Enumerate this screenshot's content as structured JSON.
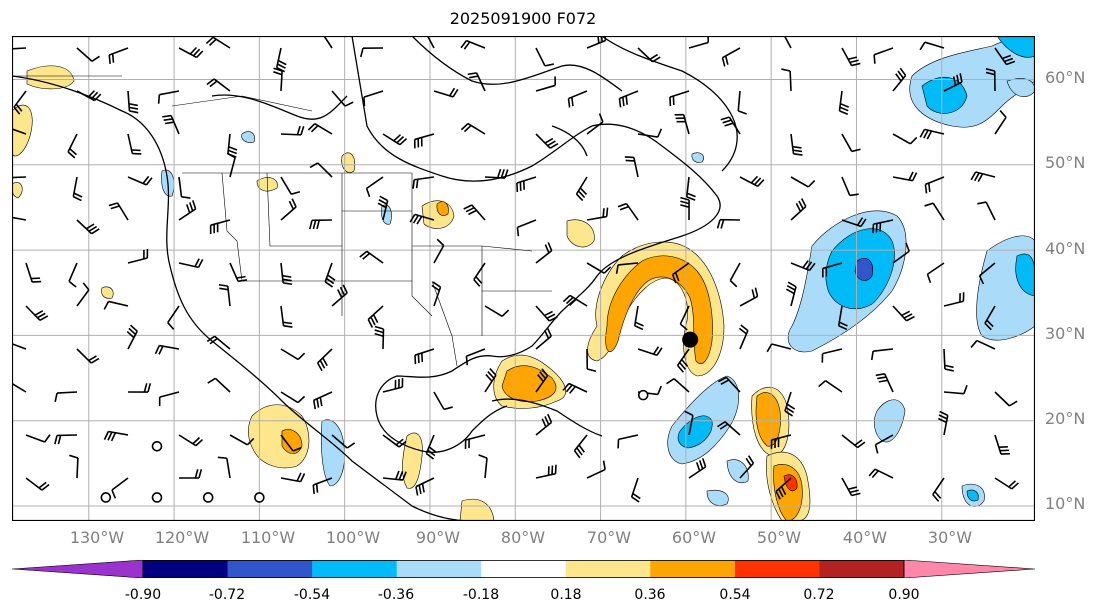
{
  "title": "2025091900 F072",
  "map": {
    "lat_labels": [
      "60°N",
      "50°N",
      "40°N",
      "30°N",
      "20°N",
      "10°N"
    ],
    "lon_labels": [
      "130°W",
      "120°W",
      "110°W",
      "100°W",
      "90°W",
      "80°W",
      "70°W",
      "60°W",
      "50°W",
      "40°W",
      "30°W"
    ],
    "cyclone_marker": {
      "lat": 29.5,
      "lon": -59.5
    },
    "open_circles": [
      [
        -122,
        17
      ],
      [
        -122,
        11
      ],
      [
        -128,
        11
      ],
      [
        -116,
        11
      ],
      [
        -65,
        23
      ],
      [
        -110,
        11
      ]
    ]
  },
  "colorbar": {
    "boundaries": [
      "-0.90",
      "-0.72",
      "-0.54",
      "-0.36",
      "-0.18",
      "0.18",
      "0.36",
      "0.54",
      "0.72",
      "0.90"
    ],
    "colors": [
      "#9933cc",
      "#000080",
      "#3355cc",
      "#00bbf7",
      "#aadcfa",
      "#ffffff",
      "#fde68c",
      "#ffa500",
      "#ff3300",
      "#b22222",
      "#ff88aa"
    ]
  }
}
